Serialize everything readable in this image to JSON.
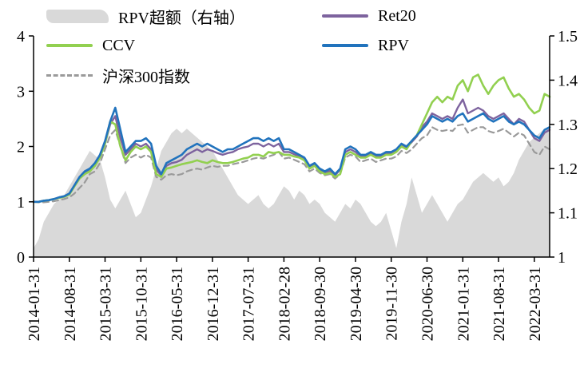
{
  "legend": {
    "items": [
      {
        "label": "RPV超额（右轴）",
        "type": "area",
        "color": "#d9d9d9"
      },
      {
        "label": "Ret20",
        "type": "line",
        "color": "#7d639e"
      },
      {
        "label": "CCV",
        "type": "line",
        "color": "#92d050"
      },
      {
        "label": "RPV",
        "type": "line",
        "color": "#2173bd"
      },
      {
        "label": "沪深300指数",
        "type": "dashed",
        "color": "#9a9a9a"
      }
    ]
  },
  "chart_data": {
    "type": "line",
    "title": "",
    "grid": false,
    "legend_position": "top",
    "n_points": 102,
    "x_tick_every": 7,
    "x_tick_labels": [
      "2014-01-31",
      "2014-08-31",
      "2015-03-31",
      "2015-10-31",
      "2016-05-31",
      "2016-12-31",
      "2017-07-31",
      "2018-02-28",
      "2018-09-30",
      "2019-04-30",
      "2019-11-30",
      "2020-06-30",
      "2021-01-31",
      "2021-08-31",
      "2022-03-31"
    ],
    "left_axis": {
      "min": 0,
      "max": 4,
      "ticks": [
        0,
        1,
        2,
        3,
        4
      ],
      "tick_labels": [
        "0",
        "1",
        "2",
        "3",
        "4"
      ]
    },
    "right_axis": {
      "min": 1,
      "max": 1.5,
      "ticks": [
        1,
        1.1,
        1.2,
        1.3,
        1.4,
        1.5
      ],
      "tick_labels": [
        "1",
        "1.1",
        "1.2",
        "1.3",
        "1.4",
        "1.5"
      ]
    },
    "series": [
      {
        "name": "RPV超额（右轴）",
        "axis": "right",
        "type": "area",
        "color": "#d9d9d9",
        "width": 0,
        "values": [
          1.02,
          1.04,
          1.08,
          1.1,
          1.12,
          1.13,
          1.14,
          1.16,
          1.18,
          1.2,
          1.22,
          1.24,
          1.23,
          1.22,
          1.18,
          1.13,
          1.11,
          1.13,
          1.15,
          1.12,
          1.09,
          1.1,
          1.13,
          1.16,
          1.2,
          1.24,
          1.26,
          1.28,
          1.29,
          1.28,
          1.29,
          1.28,
          1.27,
          1.26,
          1.25,
          1.24,
          1.22,
          1.2,
          1.18,
          1.16,
          1.14,
          1.13,
          1.12,
          1.13,
          1.14,
          1.12,
          1.11,
          1.12,
          1.14,
          1.16,
          1.15,
          1.13,
          1.15,
          1.14,
          1.12,
          1.13,
          1.12,
          1.1,
          1.09,
          1.08,
          1.1,
          1.12,
          1.11,
          1.13,
          1.12,
          1.1,
          1.08,
          1.07,
          1.08,
          1.1,
          1.06,
          1.02,
          1.08,
          1.12,
          1.18,
          1.14,
          1.1,
          1.12,
          1.14,
          1.12,
          1.1,
          1.08,
          1.1,
          1.12,
          1.13,
          1.15,
          1.17,
          1.18,
          1.19,
          1.18,
          1.17,
          1.18,
          1.16,
          1.17,
          1.19,
          1.22,
          1.24,
          1.26,
          1.27,
          1.28,
          1.29,
          1.29
        ]
      },
      {
        "name": "沪深300指数",
        "axis": "left",
        "type": "dashed",
        "color": "#9a9a9a",
        "width": 2.2,
        "values": [
          1.0,
          0.99,
          0.99,
          1.0,
          1.01,
          1.03,
          1.05,
          1.08,
          1.15,
          1.25,
          1.35,
          1.5,
          1.55,
          1.7,
          1.95,
          2.2,
          2.3,
          2.0,
          1.7,
          1.8,
          1.85,
          1.8,
          1.85,
          1.8,
          1.45,
          1.4,
          1.48,
          1.5,
          1.48,
          1.5,
          1.55,
          1.58,
          1.6,
          1.58,
          1.62,
          1.65,
          1.63,
          1.65,
          1.65,
          1.68,
          1.7,
          1.72,
          1.75,
          1.78,
          1.8,
          1.78,
          1.82,
          1.85,
          1.9,
          1.78,
          1.8,
          1.76,
          1.72,
          1.68,
          1.55,
          1.6,
          1.52,
          1.48,
          1.5,
          1.42,
          1.5,
          1.8,
          1.85,
          1.82,
          1.72,
          1.75,
          1.78,
          1.72,
          1.75,
          1.78,
          1.78,
          1.82,
          1.92,
          1.88,
          1.95,
          2.05,
          2.15,
          2.2,
          2.35,
          2.3,
          2.28,
          2.3,
          2.28,
          2.38,
          2.4,
          2.25,
          2.3,
          2.35,
          2.35,
          2.28,
          2.25,
          2.28,
          2.32,
          2.25,
          2.18,
          2.25,
          2.2,
          2.05,
          1.9,
          1.85,
          2.0,
          1.95
        ]
      },
      {
        "name": "Ret20",
        "axis": "left",
        "type": "line",
        "color": "#7d639e",
        "width": 2.4,
        "values": [
          1.0,
          1.0,
          1.02,
          1.03,
          1.05,
          1.08,
          1.1,
          1.14,
          1.29,
          1.43,
          1.52,
          1.58,
          1.68,
          1.82,
          2.05,
          2.4,
          2.55,
          2.15,
          1.85,
          1.95,
          2.05,
          2.0,
          2.05,
          1.95,
          1.58,
          1.48,
          1.65,
          1.7,
          1.72,
          1.76,
          1.85,
          1.9,
          1.95,
          1.9,
          1.95,
          1.92,
          1.88,
          1.85,
          1.88,
          1.9,
          1.95,
          1.98,
          2.0,
          2.05,
          2.05,
          2.0,
          2.05,
          2.0,
          2.05,
          1.9,
          1.9,
          1.86,
          1.82,
          1.78,
          1.62,
          1.68,
          1.58,
          1.52,
          1.56,
          1.48,
          1.58,
          1.9,
          1.95,
          1.9,
          1.82,
          1.82,
          1.88,
          1.82,
          1.82,
          1.88,
          1.88,
          1.92,
          2.02,
          1.98,
          2.08,
          2.18,
          2.35,
          2.45,
          2.6,
          2.55,
          2.5,
          2.55,
          2.5,
          2.7,
          2.85,
          2.6,
          2.65,
          2.7,
          2.65,
          2.55,
          2.5,
          2.55,
          2.6,
          2.5,
          2.4,
          2.5,
          2.45,
          2.3,
          2.15,
          2.1,
          2.25,
          2.3
        ]
      },
      {
        "name": "CCV",
        "axis": "left",
        "type": "line",
        "color": "#92d050",
        "width": 2.6,
        "values": [
          1.0,
          1.0,
          1.02,
          1.03,
          1.05,
          1.07,
          1.09,
          1.13,
          1.28,
          1.42,
          1.5,
          1.55,
          1.65,
          1.8,
          2.05,
          2.45,
          2.4,
          2.0,
          1.75,
          1.9,
          2.0,
          1.95,
          2.0,
          1.9,
          1.5,
          1.45,
          1.6,
          1.62,
          1.65,
          1.68,
          1.7,
          1.72,
          1.75,
          1.72,
          1.7,
          1.75,
          1.72,
          1.7,
          1.7,
          1.72,
          1.75,
          1.78,
          1.8,
          1.85,
          1.85,
          1.82,
          1.9,
          1.88,
          1.9,
          1.85,
          1.85,
          1.82,
          1.8,
          1.75,
          1.6,
          1.65,
          1.55,
          1.5,
          1.52,
          1.45,
          1.5,
          1.85,
          1.9,
          1.85,
          1.8,
          1.8,
          1.85,
          1.8,
          1.8,
          1.85,
          1.85,
          1.9,
          2.0,
          1.95,
          2.1,
          2.2,
          2.4,
          2.6,
          2.8,
          2.9,
          2.8,
          2.9,
          2.85,
          3.1,
          3.2,
          3.0,
          3.25,
          3.3,
          3.1,
          2.95,
          3.1,
          3.2,
          3.25,
          3.05,
          2.9,
          2.95,
          2.85,
          2.7,
          2.6,
          2.65,
          2.95,
          2.9
        ]
      },
      {
        "name": "RPV",
        "axis": "left",
        "type": "line",
        "color": "#2173bd",
        "width": 2.6,
        "values": [
          1.0,
          1.0,
          1.02,
          1.03,
          1.05,
          1.08,
          1.1,
          1.15,
          1.3,
          1.45,
          1.55,
          1.6,
          1.7,
          1.85,
          2.1,
          2.45,
          2.7,
          2.3,
          1.9,
          2.0,
          2.1,
          2.1,
          2.15,
          2.05,
          1.65,
          1.5,
          1.7,
          1.75,
          1.8,
          1.85,
          1.95,
          2.0,
          2.05,
          2.0,
          2.05,
          2.0,
          1.95,
          1.9,
          1.95,
          1.95,
          2.0,
          2.05,
          2.1,
          2.15,
          2.15,
          2.1,
          2.15,
          2.1,
          2.15,
          1.95,
          1.95,
          1.9,
          1.85,
          1.8,
          1.65,
          1.7,
          1.6,
          1.55,
          1.6,
          1.5,
          1.6,
          1.95,
          2.0,
          1.95,
          1.85,
          1.85,
          1.9,
          1.85,
          1.85,
          1.9,
          1.9,
          1.95,
          2.05,
          2.0,
          2.1,
          2.2,
          2.3,
          2.4,
          2.55,
          2.5,
          2.45,
          2.5,
          2.45,
          2.55,
          2.6,
          2.45,
          2.5,
          2.55,
          2.6,
          2.5,
          2.45,
          2.5,
          2.55,
          2.45,
          2.4,
          2.45,
          2.4,
          2.3,
          2.2,
          2.15,
          2.3,
          2.35
        ]
      }
    ]
  }
}
